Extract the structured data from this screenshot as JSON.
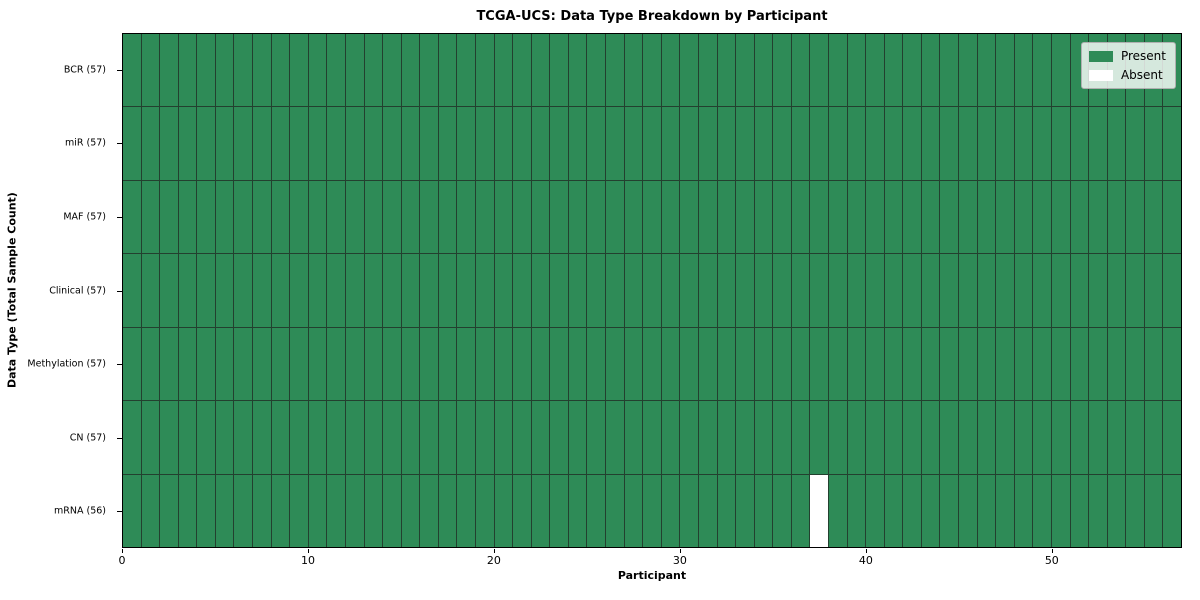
{
  "figure": {
    "background": "#ffffff"
  },
  "chart_data": {
    "type": "heatmap",
    "title": "TCGA-UCS: Data Type Breakdown by Participant",
    "xlabel": "Participant",
    "ylabel": "Data Type (Total Sample Count)",
    "x_range": [
      0,
      57
    ],
    "n_participants": 57,
    "x_ticks": [
      0,
      10,
      20,
      30,
      40,
      50
    ],
    "rows": [
      {
        "label": "BCR (57)",
        "data_type": "BCR",
        "total_samples": 57,
        "absent_participants": []
      },
      {
        "label": "miR (57)",
        "data_type": "miR",
        "total_samples": 57,
        "absent_participants": []
      },
      {
        "label": "MAF (57)",
        "data_type": "MAF",
        "total_samples": 57,
        "absent_participants": []
      },
      {
        "label": "Clinical (57)",
        "data_type": "Clinical",
        "total_samples": 57,
        "absent_participants": []
      },
      {
        "label": "Methylation (57)",
        "data_type": "Methylation",
        "total_samples": 57,
        "absent_participants": []
      },
      {
        "label": "CN (57)",
        "data_type": "CN",
        "total_samples": 57,
        "absent_participants": []
      },
      {
        "label": "mRNA (56)",
        "data_type": "mRNA",
        "total_samples": 56,
        "absent_participants": [
          37
        ]
      }
    ],
    "legend": {
      "position": "upper right",
      "items": [
        {
          "label": "Present",
          "color": "#2e8b57"
        },
        {
          "label": "Absent",
          "color": "#ffffff"
        }
      ]
    },
    "colors": {
      "present": "#2e8b57",
      "absent": "#ffffff",
      "cell_edge": "#23402f",
      "spine": "#000000"
    }
  }
}
